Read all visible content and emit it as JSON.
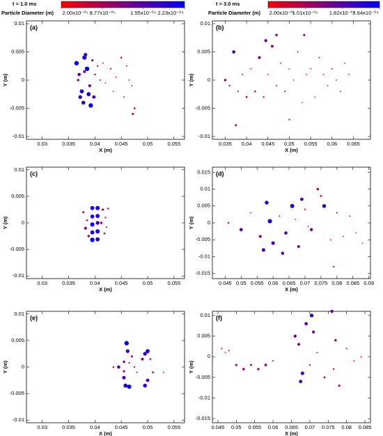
{
  "colorbars": [
    {
      "title": "t = 1.0 ms",
      "label": "Particle Diameter (m)",
      "colors": [
        "#ff0000",
        "#0000ff"
      ],
      "ticks": [
        {
          "value": 2e-05,
          "label": "2.00x10⁻⁰⁵"
        },
        {
          "value": 8.77e-05,
          "label": "8.77x10⁻⁰⁵"
        },
        {
          "value": 0.000155,
          "label": "1.55x10⁻⁰⁴"
        },
        {
          "value": 0.000223,
          "label": "2.23x10⁻⁰⁴"
        }
      ]
    },
    {
      "title": "t = 3.0 ms",
      "label": "Particle Diameter (m)",
      "colors": [
        "#ff0000",
        "#0000ff"
      ],
      "ticks": [
        {
          "value": 2e-05,
          "label": "2.00x10⁻⁰⁵"
        },
        {
          "value": 0.000101,
          "label": "1.01x10⁻⁰⁴"
        },
        {
          "value": 0.000182,
          "label": "1.82x10⁻⁰⁴"
        },
        {
          "value": 0.000264,
          "label": "2.64x10⁻⁰⁴"
        }
      ]
    }
  ],
  "chart_data": [
    {
      "type": "scatter",
      "panel": "(a)",
      "x_label": "X (m)",
      "y_label": "Y (m)",
      "xlim": [
        0.027,
        0.057
      ],
      "ylim": [
        -0.0105,
        0.0105
      ],
      "xticks": [
        0.03,
        0.035,
        0.04,
        0.045,
        0.05,
        0.055
      ],
      "yticks": [
        -0.01,
        -0.005,
        0,
        0.005,
        0.01
      ],
      "series": [
        {
          "x": [
            0.0365,
            0.037,
            0.0375,
            0.038,
            0.0372,
            0.0368,
            0.0385,
            0.039,
            0.0395,
            0.04,
            0.041,
            0.042,
            0.043,
            0.044,
            0.045,
            0.046,
            0.047,
            0.0475,
            0.0378,
            0.0382,
            0.0388,
            0.0398,
            0.0415,
            0.0435,
            0.0455,
            0.0465,
            0.0472,
            0.038,
            0.0392,
            0.0405
          ],
          "y": [
            0.003,
            0.001,
            -0.002,
            0.004,
            -0.003,
            0,
            0.002,
            -0.001,
            0.0035,
            0.001,
            0,
            -0.0005,
            0.002,
            0.0005,
            0.004,
            0.0025,
            -0.001,
            -0.005,
            -0.004,
            0.0045,
            -0.0025,
            -0.003,
            0.003,
            -0.002,
            -0.003,
            0,
            -0.006,
            0.0015,
            -0.0045,
            0.0025
          ],
          "sizes": [
            0.00022,
            0.00015,
            0.0002,
            0.00021,
            0.00018,
            0.0001,
            0.000223,
            0.00013,
            9e-05,
            6e-05,
            4e-05,
            3e-05,
            5e-05,
            3e-05,
            6e-05,
            4e-05,
            3e-05,
            7e-05,
            0.00019,
            0.00017,
            0.0002,
            0.00016,
            3e-05,
            2.5e-05,
            3.5e-05,
            3e-05,
            8e-05,
            0.00012,
            0.00022,
            5e-05
          ]
        }
      ]
    },
    {
      "type": "scatter",
      "panel": "(b)",
      "x_label": "X (m)",
      "y_label": "Y (m)",
      "xlim": [
        0.032,
        0.069
      ],
      "ylim": [
        -0.0105,
        0.0105
      ],
      "xticks": [
        0.035,
        0.04,
        0.045,
        0.05,
        0.055,
        0.06,
        0.065
      ],
      "yticks": [
        -0.01,
        -0.005,
        0,
        0.005,
        0.01
      ],
      "series": [
        {
          "x": [
            0.035,
            0.036,
            0.037,
            0.038,
            0.039,
            0.04,
            0.041,
            0.042,
            0.043,
            0.044,
            0.045,
            0.046,
            0.047,
            0.048,
            0.049,
            0.05,
            0.051,
            0.052,
            0.053,
            0.054,
            0.055,
            0.056,
            0.057,
            0.058,
            0.059,
            0.06,
            0.061,
            0.062,
            0.063,
            0.064,
            0.0375,
            0.0445,
            0.047,
            0.05,
            0.0535
          ],
          "y": [
            0,
            -0.001,
            0.005,
            -0.002,
            0.001,
            -0.003,
            0.002,
            -0.002,
            0.004,
            -0.003,
            0.001,
            0.006,
            -0.001,
            0.003,
            -0.002,
            0.002,
            0,
            0.005,
            -0.004,
            0.001,
            0.002,
            -0.003,
            0.004,
            0.001,
            -0.001,
            0.002,
            0,
            -0.002,
            0.003,
            0.001,
            -0.008,
            0.007,
            0.008,
            -0.007,
            0.008
          ],
          "sizes": [
            0.00012,
            6e-05,
            0.00018,
            5e-05,
            4e-05,
            8e-05,
            3e-05,
            7e-05,
            0.00015,
            6e-05,
            3e-05,
            0.00014,
            4e-05,
            3e-05,
            5e-05,
            3e-05,
            3e-05,
            4e-05,
            3e-05,
            3e-05,
            3e-05,
            3e-05,
            4e-05,
            3e-05,
            3e-05,
            3e-05,
            3e-05,
            3e-05,
            3e-05,
            3e-05,
            9e-05,
            0.00016,
            0.00012,
            6e-05,
            0.0001
          ]
        }
      ]
    },
    {
      "type": "scatter",
      "panel": "(c)",
      "x_label": "X (m)",
      "y_label": "Y (m)",
      "xlim": [
        0.027,
        0.057
      ],
      "ylim": [
        -0.0105,
        0.0105
      ],
      "xticks": [
        0.03,
        0.035,
        0.04,
        0.045,
        0.05,
        0.055
      ],
      "yticks": [
        -0.01,
        -0.005,
        0,
        0.005,
        0.01
      ],
      "series": [
        {
          "x": [
            0.0378,
            0.0382,
            0.0385,
            0.0388,
            0.0395,
            0.0395,
            0.0395,
            0.0395,
            0.0395,
            0.0405,
            0.0405,
            0.0405,
            0.0405,
            0.0405,
            0.0415,
            0.0418,
            0.042,
            0.0425,
            0.0422,
            0.0412
          ],
          "y": [
            0.002,
            -0.001,
            0.0005,
            -0.0025,
            0.0028,
            0.0012,
            -0.0003,
            -0.0018,
            -0.0032,
            0.0028,
            0.0013,
            0,
            -0.0016,
            -0.0031,
            0.0025,
            -0.002,
            0.001,
            0.0027,
            -0.0008,
            0
          ],
          "sizes": [
            8e-05,
            0.00012,
            6e-05,
            0.0001,
            0.0002,
            0.00019,
            0.00021,
            0.0002,
            0.00022,
            0.00021,
            0.0002,
            0.00018,
            0.00021,
            0.0002,
            9e-05,
            7e-05,
            5e-05,
            6e-05,
            4e-05,
            0.0001
          ]
        }
      ]
    },
    {
      "type": "scatter",
      "panel": "(d)",
      "x_label": "X (m)",
      "y_label": "Y (m)",
      "xlim": [
        0.041,
        0.0905
      ],
      "ylim": [
        -0.0165,
        0.0165
      ],
      "xticks": [
        0.045,
        0.05,
        0.055,
        0.06,
        0.065,
        0.07,
        0.075,
        0.08,
        0.085,
        0.09
      ],
      "yticks": [
        -0.015,
        -0.01,
        -0.005,
        0,
        0.005,
        0.01,
        0.015
      ],
      "series": [
        {
          "x": [
            0.046,
            0.05,
            0.053,
            0.056,
            0.058,
            0.06,
            0.062,
            0.064,
            0.066,
            0.068,
            0.07,
            0.072,
            0.074,
            0.076,
            0.078,
            0.08,
            0.082,
            0.084,
            0.086,
            0.088,
            0.059,
            0.063,
            0.071,
            0.075,
            0.057,
            0.067,
            0.079,
            0.069
          ],
          "y": [
            0,
            -0.002,
            0.003,
            -0.004,
            0.006,
            -0.006,
            0.002,
            -0.003,
            0.005,
            -0.007,
            0.004,
            -0.002,
            0.01,
            0.005,
            -0.005,
            0.003,
            -0.004,
            0.002,
            -0.003,
            -0.006,
            0.0005,
            -0.009,
            -0.001,
            0.008,
            -0.008,
            0.001,
            -0.013,
            0.007
          ],
          "sizes": [
            6e-05,
            0.00018,
            3e-05,
            0.00015,
            0.00022,
            0.0002,
            4e-05,
            0.00018,
            0.00024,
            0.00014,
            5e-05,
            0.00016,
            0.00012,
            0.00022,
            3e-05,
            5e-05,
            3e-05,
            3e-05,
            3e-05,
            3e-05,
            0.00025,
            0.00017,
            3e-05,
            8e-05,
            0.0002,
            3e-05,
            6e-05,
            0.00019
          ]
        }
      ]
    },
    {
      "type": "scatter",
      "panel": "(e)",
      "x_label": "X (m)",
      "y_label": "Y (m)",
      "xlim": [
        0.027,
        0.057
      ],
      "ylim": [
        -0.0105,
        0.0105
      ],
      "xticks": [
        0.03,
        0.035,
        0.04,
        0.045,
        0.05,
        0.055
      ],
      "yticks": [
        -0.01,
        -0.005,
        0,
        0.005,
        0.01
      ],
      "series": [
        {
          "x": [
            0.0435,
            0.0445,
            0.0455,
            0.046,
            0.0462,
            0.0458,
            0.0465,
            0.047,
            0.0455,
            0.0475,
            0.048,
            0.049,
            0.0495,
            0.05,
            0.0505,
            0.05,
            0.0495,
            0.051,
            0.0465,
            0.0455,
            0.053
          ],
          "y": [
            0,
            0,
            0.001,
            0.0045,
            0.003,
            -0.0035,
            -0.0037,
            0.002,
            -0.002,
            0,
            -0.001,
            0.0015,
            0.0025,
            0.003,
            0.0015,
            -0.0025,
            -0.0035,
            -0.001,
            0.0008,
            -0.0008,
            -0.001
          ],
          "sizes": [
            6e-05,
            0.00015,
            0.0001,
            0.00022,
            0.00018,
            0.0002,
            0.00021,
            8e-05,
            0.00017,
            5e-05,
            4e-05,
            0.00012,
            0.00018,
            0.0002,
            6e-05,
            0.00016,
            0.00019,
            7e-05,
            5e-05,
            9e-05,
            3e-05
          ]
        }
      ]
    },
    {
      "type": "scatter",
      "panel": "(f)",
      "x_label": "X (m)",
      "y_label": "Y (m)",
      "xlim": [
        0.0435,
        0.0865
      ],
      "ylim": [
        -0.016,
        0.011
      ],
      "xticks": [
        0.045,
        0.05,
        0.055,
        0.06,
        0.065,
        0.07,
        0.075,
        0.08,
        0.085
      ],
      "yticks": [
        -0.015,
        -0.01,
        -0.005,
        0,
        0.005,
        0.01
      ],
      "series": [
        {
          "x": [
            0.046,
            0.047,
            0.048,
            0.05,
            0.052,
            0.054,
            0.056,
            0.058,
            0.06,
            0.066,
            0.067,
            0.068,
            0.069,
            0.07,
            0.071,
            0.072,
            0.074,
            0.076,
            0.077,
            0.078,
            0.08,
            0.082,
            0.084,
            0.0675,
            0.0705,
            0.0765
          ],
          "y": [
            0.002,
            0.001,
            0.0015,
            -0.002,
            -0.003,
            -0.002,
            -0.003,
            -0.002,
            -0.001,
            0.005,
            0.003,
            -0.004,
            0.008,
            -0.002,
            0.006,
            0.001,
            -0.005,
            0.011,
            0.004,
            -0.007,
            0.002,
            -0.001,
            0,
            -0.006,
            0.01,
            -0.003
          ],
          "sizes": [
            4e-05,
            3e-05,
            5e-05,
            0.0001,
            0.00012,
            9e-05,
            0.00011,
            0.00013,
            4e-05,
            0.00016,
            0.00014,
            0.0002,
            0.00018,
            6e-05,
            0.00015,
            4e-05,
            8e-05,
            0.00017,
            0.00012,
            0.0001,
            4e-05,
            3e-05,
            3e-05,
            0.00019,
            0.00021,
            6e-05
          ]
        }
      ]
    }
  ]
}
